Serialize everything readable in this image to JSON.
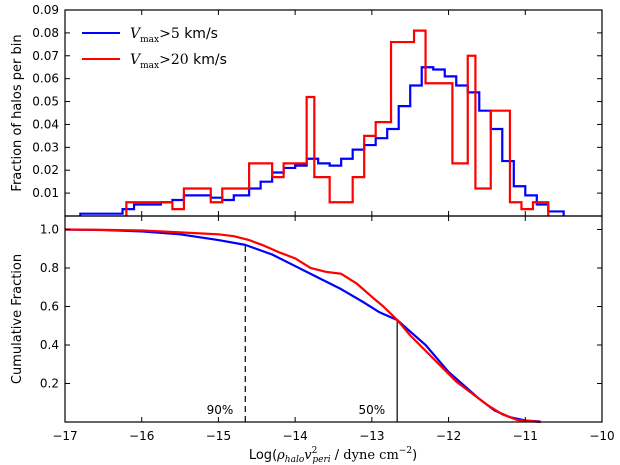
{
  "chart_data": [
    {
      "type": "line",
      "panel": "top",
      "subtype": "step-histogram",
      "ylabel": "Fraction of halos per bin",
      "xlim": [
        -17,
        -10
      ],
      "ylim": [
        0.0,
        0.09
      ],
      "yticks": [
        0.01,
        0.02,
        0.03,
        0.04,
        0.05,
        0.06,
        0.07,
        0.08,
        0.09
      ],
      "grid": false,
      "legend": "top-left",
      "series": [
        {
          "name": "V_max > 5 km/s",
          "color": "#0000ff",
          "edges": [
            -16.8,
            -16.25,
            -16.1,
            -15.9,
            -15.75,
            -15.6,
            -15.45,
            -15.25,
            -15.1,
            -14.95,
            -14.8,
            -14.6,
            -14.45,
            -14.3,
            -14.15,
            -14.0,
            -13.85,
            -13.7,
            -13.55,
            -13.4,
            -13.25,
            -13.1,
            -12.95,
            -12.8,
            -12.65,
            -12.5,
            -12.35,
            -12.2,
            -12.05,
            -11.9,
            -11.75,
            -11.6,
            -11.45,
            -11.3,
            -11.15,
            -11.0,
            -10.85,
            -10.7,
            -10.5
          ],
          "values": [
            0.001,
            0.003,
            0.005,
            0.005,
            0.006,
            0.007,
            0.009,
            0.009,
            0.008,
            0.007,
            0.009,
            0.012,
            0.015,
            0.019,
            0.021,
            0.022,
            0.025,
            0.023,
            0.022,
            0.025,
            0.029,
            0.031,
            0.034,
            0.038,
            0.048,
            0.057,
            0.065,
            0.064,
            0.061,
            0.057,
            0.054,
            0.046,
            0.038,
            0.024,
            0.013,
            0.009,
            0.005,
            0.002
          ]
        },
        {
          "name": "V_max > 20 km/s",
          "color": "#ff0000",
          "edges": [
            -16.2,
            -15.9,
            -15.6,
            -15.45,
            -15.1,
            -14.95,
            -14.6,
            -14.45,
            -14.3,
            -14.15,
            -13.85,
            -13.75,
            -13.55,
            -13.35,
            -13.25,
            -13.1,
            -12.95,
            -12.75,
            -12.45,
            -12.3,
            -12.15,
            -11.95,
            -11.75,
            -11.65,
            -11.45,
            -11.2,
            -11.05,
            -10.9,
            -10.7
          ],
          "values": [
            0.006,
            0.006,
            0.003,
            0.012,
            0.006,
            0.012,
            0.023,
            0.023,
            0.017,
            0.023,
            0.052,
            0.017,
            0.006,
            0.006,
            0.017,
            0.035,
            0.041,
            0.076,
            0.081,
            0.058,
            0.058,
            0.023,
            0.07,
            0.012,
            0.046,
            0.006,
            0.003,
            0.006
          ]
        }
      ]
    },
    {
      "type": "line",
      "panel": "bottom",
      "xlabel": "Log(ρ_halo v²_peri / dyne cm⁻²)",
      "ylabel": "Cumulative Fraction",
      "xlim": [
        -17,
        -10
      ],
      "ylim": [
        0.0,
        1.07
      ],
      "xticks": [
        -17,
        -16,
        -15,
        -14,
        -13,
        -12,
        -11,
        -10
      ],
      "yticks": [
        0.2,
        0.4,
        0.6,
        0.8,
        1.0
      ],
      "grid": false,
      "series": [
        {
          "color": "#0000ff",
          "x": [
            -17.0,
            -16.5,
            -16.0,
            -15.5,
            -15.0,
            -14.65,
            -14.3,
            -14.0,
            -13.7,
            -13.4,
            -13.1,
            -12.9,
            -12.67,
            -12.5,
            -12.3,
            -12.0,
            -11.8,
            -11.6,
            -11.4,
            -11.2,
            -11.0,
            -10.8
          ],
          "y": [
            1.0,
            0.997,
            0.99,
            0.975,
            0.945,
            0.92,
            0.87,
            0.81,
            0.75,
            0.69,
            0.62,
            0.57,
            0.53,
            0.47,
            0.4,
            0.26,
            0.19,
            0.12,
            0.06,
            0.025,
            0.008,
            0.002
          ]
        },
        {
          "color": "#ff0000",
          "x": [
            -17.0,
            -16.5,
            -16.0,
            -15.5,
            -15.0,
            -14.8,
            -14.6,
            -14.4,
            -14.2,
            -14.0,
            -13.8,
            -13.6,
            -13.4,
            -13.2,
            -13.0,
            -12.85,
            -12.67,
            -12.5,
            -12.3,
            -12.1,
            -11.9,
            -11.7,
            -11.5,
            -11.3,
            -11.1,
            -10.8
          ],
          "y": [
            1.0,
            0.998,
            0.995,
            0.985,
            0.975,
            0.965,
            0.945,
            0.915,
            0.88,
            0.85,
            0.8,
            0.78,
            0.77,
            0.72,
            0.65,
            0.6,
            0.53,
            0.45,
            0.37,
            0.29,
            0.21,
            0.15,
            0.09,
            0.04,
            0.01,
            0.0
          ]
        }
      ],
      "annotations": [
        {
          "text": "90%",
          "x": -14.65,
          "linestyle": "dashed",
          "y_top": 0.92
        },
        {
          "text": "50%",
          "x": -12.67,
          "linestyle": "solid",
          "y_top": 0.53
        }
      ]
    }
  ]
}
